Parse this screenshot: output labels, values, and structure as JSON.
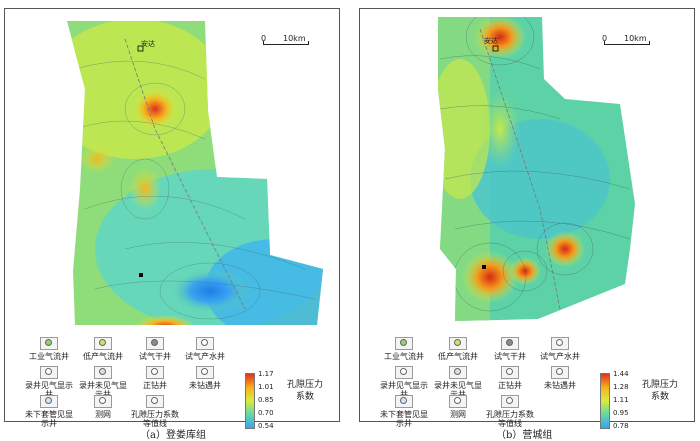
{
  "panels": [
    {
      "caption": "（a）登娄库组",
      "town": "安达",
      "scale": {
        "zero": "0",
        "dist": "10km"
      },
      "colorbar": {
        "title": "孔隙压力系数",
        "ticks": [
          "1.17",
          "1.01",
          "0.85",
          "0.70",
          "0.54"
        ],
        "colors": [
          "#e0301e",
          "#f6b21d",
          "#d8ec3c",
          "#63d6a8",
          "#3aa4f0"
        ]
      },
      "legend": [
        {
          "label": "工业气流井",
          "icon": "gas-flow-well-icon"
        },
        {
          "label": "低产气流井",
          "icon": "low-gas-well-icon"
        },
        {
          "label": "试气干井",
          "icon": "dry-well-icon"
        },
        {
          "label": "试气产水井",
          "icon": "water-well-icon"
        },
        {
          "label": "录井见气显示井",
          "icon": "gas-show-well-icon"
        },
        {
          "label": "录井未见气显示井",
          "icon": "no-show-well-icon"
        },
        {
          "label": "正钻井",
          "icon": "drilling-well-icon"
        },
        {
          "label": "未钻遇井",
          "icon": "not-drilled-well-icon"
        },
        {
          "label": "未下套管见显示井",
          "icon": "uncased-well-icon"
        },
        {
          "label": "测网",
          "icon": "survey-grid-icon"
        },
        {
          "label": "孔隙压力系数等值线",
          "icon": "contour-line-icon"
        }
      ]
    },
    {
      "caption": "（b）营城组",
      "town": "安达",
      "scale": {
        "zero": "0",
        "dist": "10km"
      },
      "colorbar": {
        "title": "孔隙压力系数",
        "ticks": [
          "1.44",
          "1.28",
          "1.11",
          "0.95",
          "0.78"
        ],
        "colors": [
          "#e0301e",
          "#f6b21d",
          "#d8ec3c",
          "#63d6a8",
          "#3aa4f0"
        ]
      },
      "legend": [
        {
          "label": "工业气流井",
          "icon": "gas-flow-well-icon"
        },
        {
          "label": "低产气流井",
          "icon": "low-gas-well-icon"
        },
        {
          "label": "试气干井",
          "icon": "dry-well-icon"
        },
        {
          "label": "试气产水井",
          "icon": "water-well-icon"
        },
        {
          "label": "录井见气显示井",
          "icon": "gas-show-well-icon"
        },
        {
          "label": "录井未见气显示井",
          "icon": "no-show-well-icon"
        },
        {
          "label": "正钻井",
          "icon": "drilling-well-icon"
        },
        {
          "label": "未钻遇井",
          "icon": "not-drilled-well-icon"
        },
        {
          "label": "未下套管见显示井",
          "icon": "uncased-well-icon"
        },
        {
          "label": "测网",
          "icon": "survey-grid-icon"
        },
        {
          "label": "孔隙压力系数等值线",
          "icon": "contour-line-icon"
        }
      ]
    }
  ]
}
